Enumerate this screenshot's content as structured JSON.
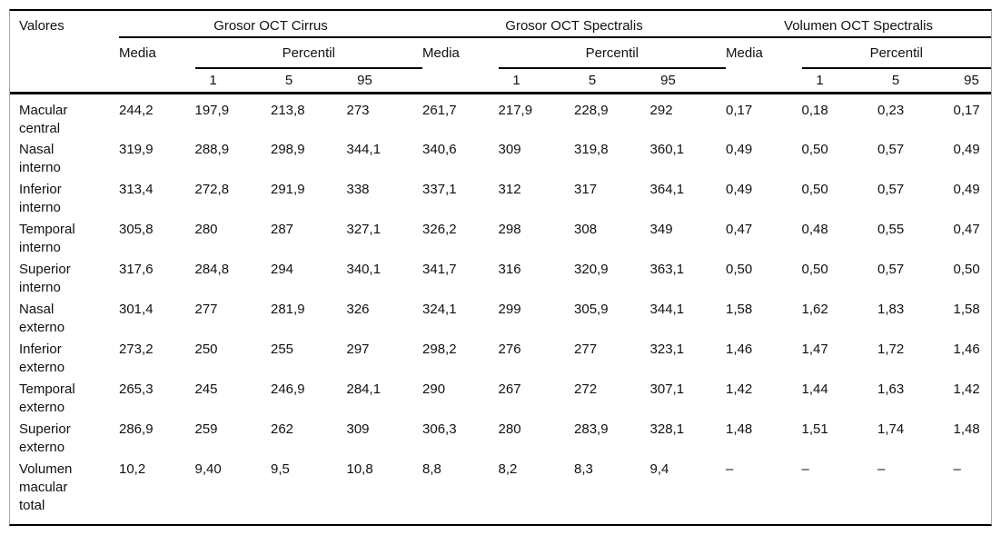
{
  "table": {
    "corner_label": "Valores",
    "groups": [
      {
        "label": "Grosor OCT Cirrus"
      },
      {
        "label": "Grosor OCT Spectralis"
      },
      {
        "label": "Volumen OCT Spectralis"
      }
    ],
    "media_label": "Media",
    "percentil_label": "Percentil",
    "percentile_cols": [
      "1",
      "5",
      "95"
    ],
    "missing_marker": "–",
    "colors": {
      "rule": "#000000",
      "frame": "#a8a8a8",
      "text": "#111111",
      "background": "#ffffff"
    },
    "rows": [
      {
        "label": "Macular\ncentral",
        "values": [
          "244,2",
          "197,9",
          "213,8",
          "273",
          "261,7",
          "217,9",
          "228,9",
          "292",
          "0,17",
          "0,18",
          "0,23",
          "0,17"
        ]
      },
      {
        "label": "Nasal\ninterno",
        "values": [
          "319,9",
          "288,9",
          "298,9",
          "344,1",
          "340,6",
          "309",
          "319,8",
          "360,1",
          "0,49",
          "0,50",
          "0,57",
          "0,49"
        ]
      },
      {
        "label": "Inferior\ninterno",
        "values": [
          "313,4",
          "272,8",
          "291,9",
          "338",
          "337,1",
          "312",
          "317",
          "364,1",
          "0,49",
          "0,50",
          "0,57",
          "0,49"
        ]
      },
      {
        "label": "Temporal\ninterno",
        "values": [
          "305,8",
          "280",
          "287",
          "327,1",
          "326,2",
          "298",
          "308",
          "349",
          "0,47",
          "0,48",
          "0,55",
          "0,47"
        ]
      },
      {
        "label": "Superior\ninterno",
        "values": [
          "317,6",
          "284,8",
          "294",
          "340,1",
          "341,7",
          "316",
          "320,9",
          "363,1",
          "0,50",
          "0,50",
          "0,57",
          "0,50"
        ]
      },
      {
        "label": "Nasal\nexterno",
        "values": [
          "301,4",
          "277",
          "281,9",
          "326",
          "324,1",
          "299",
          "305,9",
          "344,1",
          "1,58",
          "1,62",
          "1,83",
          "1,58"
        ]
      },
      {
        "label": "Inferior\nexterno",
        "values": [
          "273,2",
          "250",
          "255",
          "297",
          "298,2",
          "276",
          "277",
          "323,1",
          "1,46",
          "1,47",
          "1,72",
          "1,46"
        ]
      },
      {
        "label": "Temporal\nexterno",
        "values": [
          "265,3",
          "245",
          "246,9",
          "284,1",
          "290",
          "267",
          "272",
          "307,1",
          "1,42",
          "1,44",
          "1,63",
          "1,42"
        ]
      },
      {
        "label": "Superior\nexterno",
        "values": [
          "286,9",
          "259",
          "262",
          "309",
          "306,3",
          "280",
          "283,9",
          "328,1",
          "1,48",
          "1,51",
          "1,74",
          "1,48"
        ]
      },
      {
        "label": "Volumen\nmacular\ntotal",
        "values": [
          "10,2",
          "9,40",
          "9,5",
          "10,8",
          "8,8",
          "8,2",
          "8,3",
          "9,4",
          "–",
          "–",
          "–",
          "–"
        ]
      }
    ]
  }
}
